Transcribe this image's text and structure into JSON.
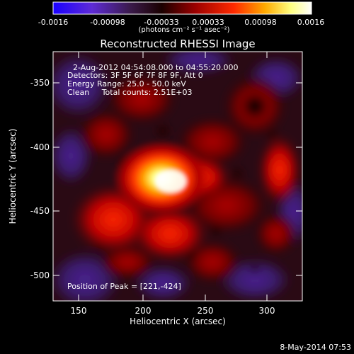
{
  "colorbar": {
    "tick_labels": [
      "-0.0016",
      "-0.00098",
      "-0.00033",
      "0.00033",
      "0.00098",
      "0.0016"
    ],
    "units_label": "(photons cm⁻² s⁻¹ asec⁻²)",
    "stops": [
      "#1a00ff",
      "#5e2bd6",
      "#3a1a4a",
      "#1a0000",
      "#9b0000",
      "#ff2a00",
      "#ffaa00",
      "#ffff80",
      "#ffffff"
    ]
  },
  "plot": {
    "title": "Reconstructed RHESSI Image",
    "annotation_time": "2-Aug-2012 04:54:08.000 to 04:55:20.000",
    "annotation_detectors": "Detectors: 3F 5F 6F 7F 8F 9F, Att 0",
    "annotation_energy": "Energy Range: 25.0 - 50.0 keV",
    "annotation_method": "Clean     Total counts: 2.51E+03",
    "peak_text": "Position of Peak = [221,-424]",
    "xlabel": "Heliocentric X (arcsec)",
    "ylabel": "Heliocentric Y (arcsec)",
    "xticks": [
      "150",
      "200",
      "250",
      "300"
    ],
    "yticks": [
      "-350",
      "-400",
      "-450",
      "-500"
    ]
  },
  "footer": {
    "timestamp": "8-May-2014 07:53"
  }
}
